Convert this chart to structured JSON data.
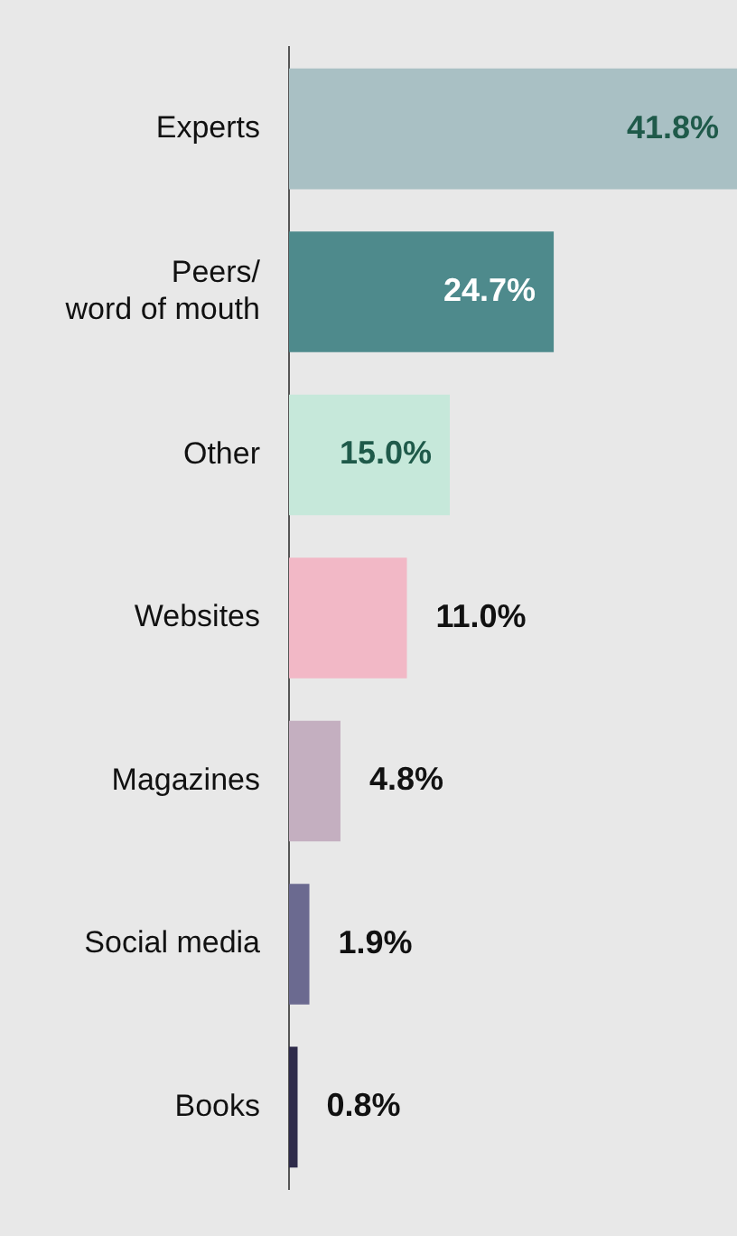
{
  "chart_data": {
    "type": "bar",
    "orientation": "horizontal",
    "categories": [
      "Experts",
      "Peers/ word of mouth",
      "Other",
      "Websites",
      "Magazines",
      "Social media",
      "Books"
    ],
    "values": [
      41.8,
      24.7,
      15.0,
      11.0,
      4.8,
      1.9,
      0.8
    ],
    "value_labels": [
      "41.8%",
      "24.7%",
      "15.0%",
      "11.0%",
      "4.8%",
      "1.9%",
      "0.8%"
    ],
    "colors": [
      "#a9c0c4",
      "#4e8a8c",
      "#c6e8da",
      "#f2b8c6",
      "#c4afc0",
      "#6b6a90",
      "#2e2b4a"
    ],
    "grid": false,
    "legend": false,
    "tick_labels": "y"
  }
}
